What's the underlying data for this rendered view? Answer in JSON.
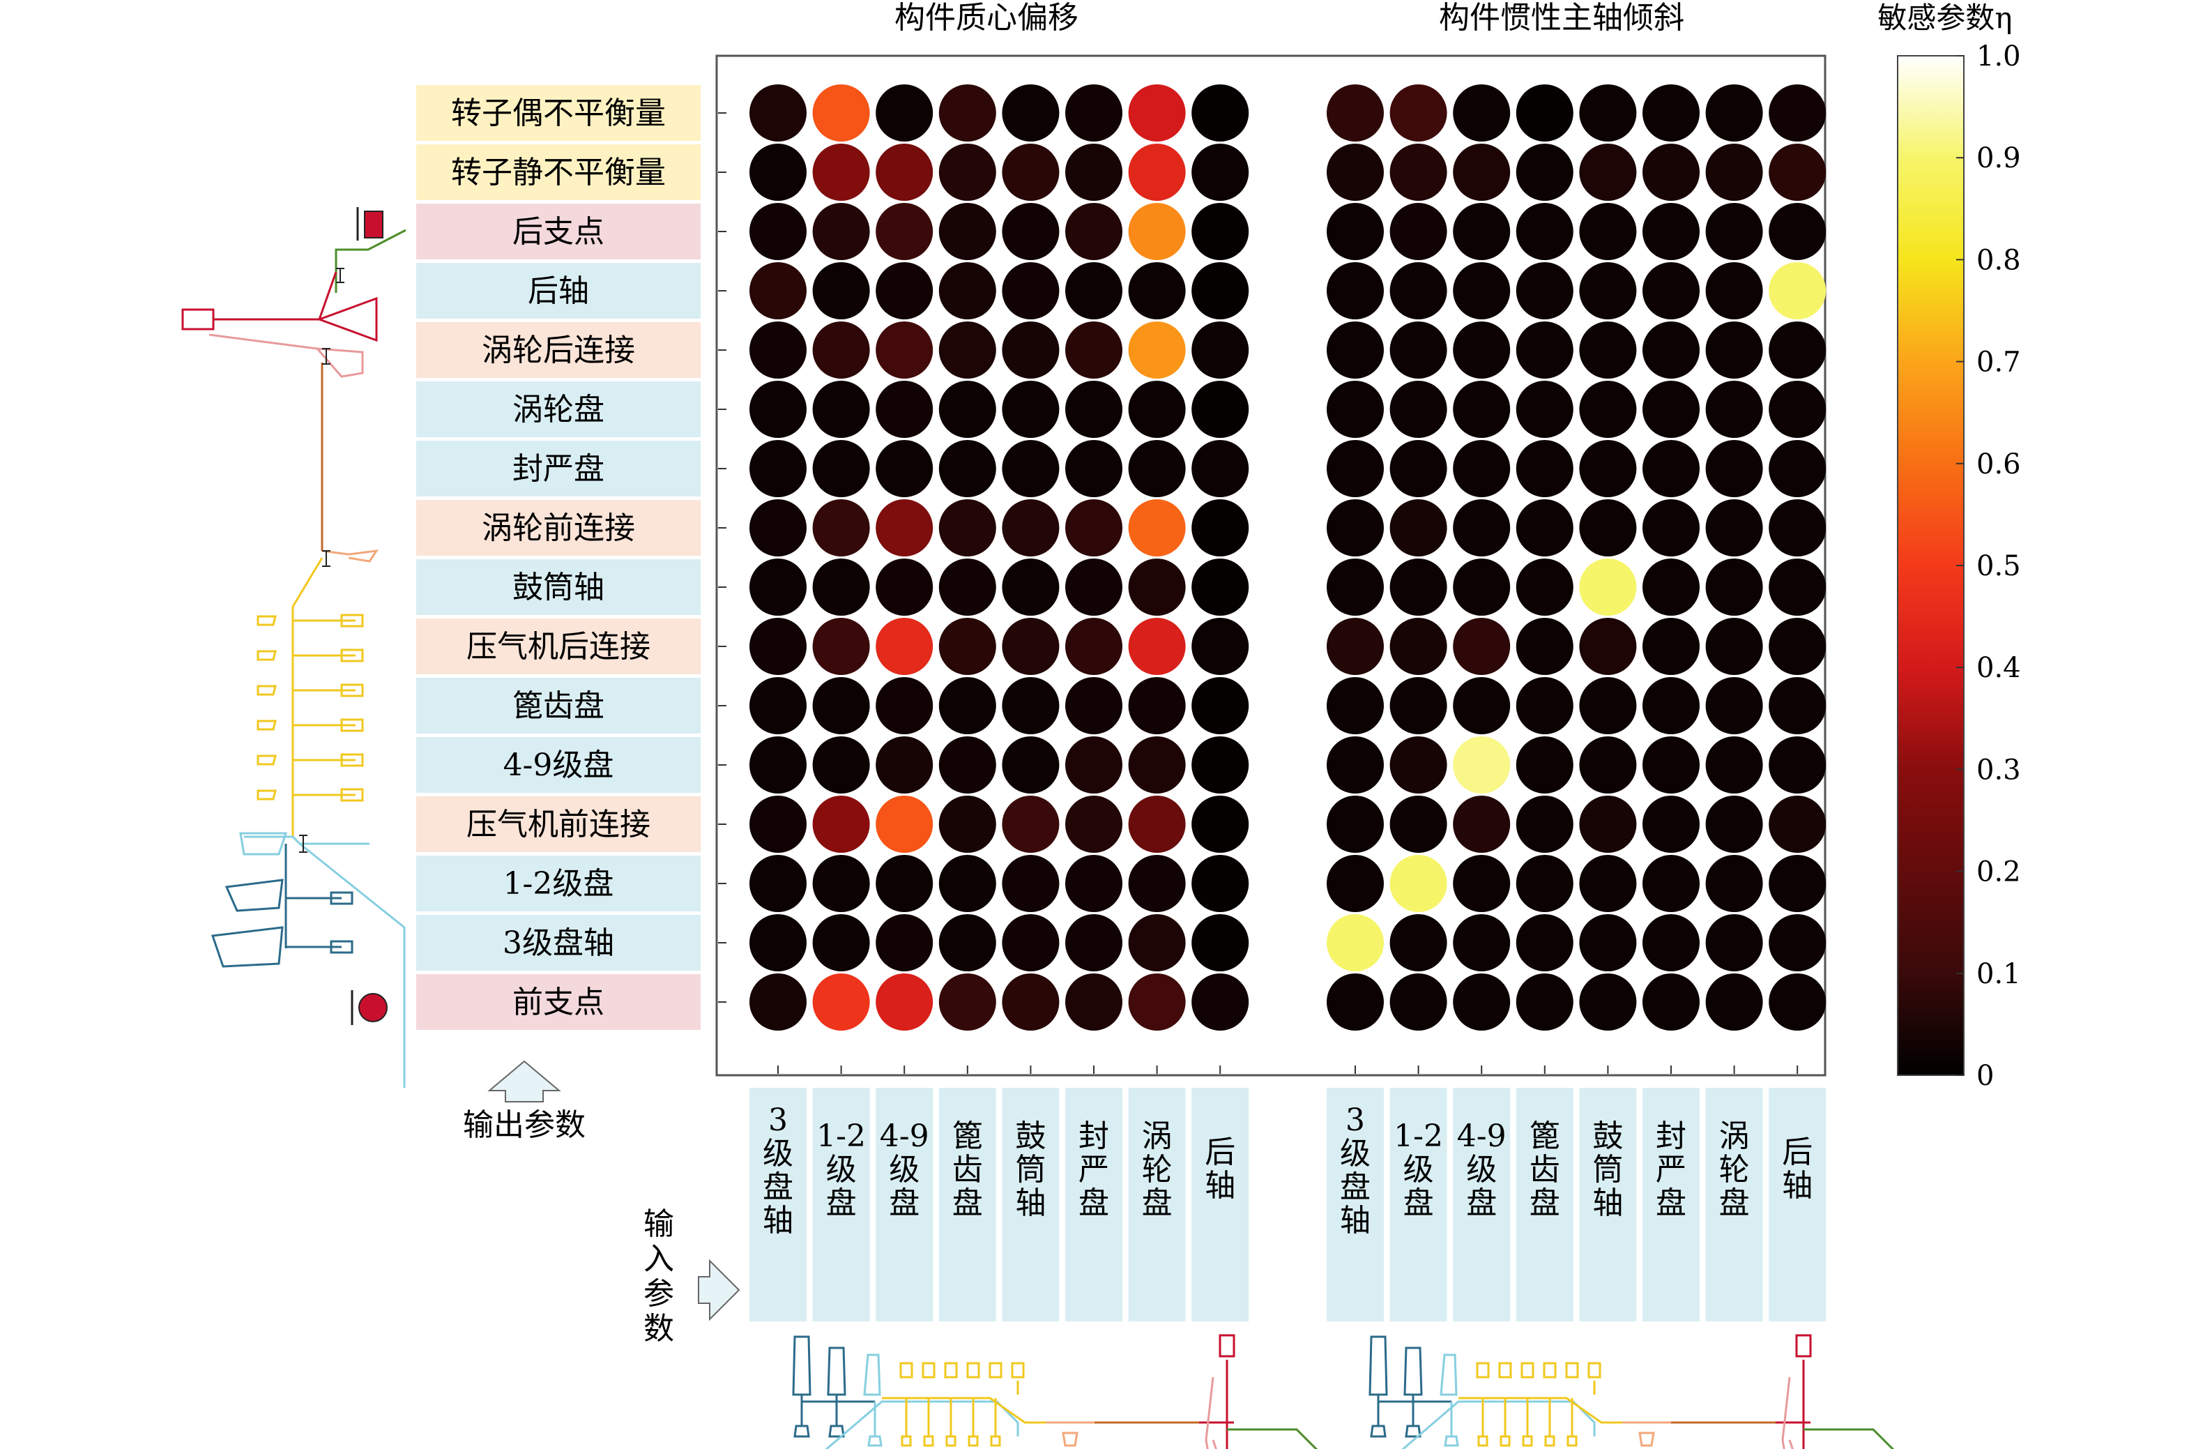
{
  "chart_data": {
    "type": "heatmap",
    "title": "",
    "panels": [
      {
        "title": "构件质心偏移"
      },
      {
        "title": "构件惯性主轴倾斜"
      }
    ],
    "row_labels": [
      "转子偶不平衡量",
      "转子静不平衡量",
      "后支点",
      "后轴",
      "涡轮后连接",
      "涡轮盘",
      "封严盘",
      "涡轮前连接",
      "鼓筒轴",
      "压气机后连接",
      "篦齿盘",
      "4-9级盘",
      "压气机前连接",
      "1-2级盘",
      "3级盘轴",
      "前支点"
    ],
    "row_groups": [
      "unbalance",
      "unbalance",
      "support",
      "component",
      "connection",
      "component",
      "component",
      "connection",
      "component",
      "connection",
      "component",
      "component",
      "connection",
      "component",
      "component",
      "support"
    ],
    "col_labels": [
      "3级盘轴",
      "1-2级盘",
      "4-9级盘",
      "篦齿盘",
      "鼓筒轴",
      "封严盘",
      "涡轮盘",
      "后轴"
    ],
    "col_labels_display": [
      "3\n级\n盘\n轴",
      "1-2\n级\n盘",
      "4-9\n级\n盘",
      "篦\n齿\n盘",
      "鼓\n筒\n轴",
      "封\n严\n盘",
      "涡\n轮\n盘",
      "后\n轴"
    ],
    "values_panel1": [
      [
        0.05,
        0.55,
        0.02,
        0.08,
        0.02,
        0.03,
        0.4,
        0.01
      ],
      [
        0.02,
        0.28,
        0.25,
        0.06,
        0.07,
        0.04,
        0.44,
        0.02
      ],
      [
        0.03,
        0.06,
        0.1,
        0.04,
        0.03,
        0.06,
        0.65,
        0.01
      ],
      [
        0.07,
        0.02,
        0.03,
        0.04,
        0.03,
        0.02,
        0.02,
        0.01
      ],
      [
        0.03,
        0.08,
        0.12,
        0.05,
        0.04,
        0.07,
        0.67,
        0.02
      ],
      [
        0.02,
        0.02,
        0.03,
        0.02,
        0.02,
        0.02,
        0.02,
        0.01
      ],
      [
        0.02,
        0.02,
        0.02,
        0.02,
        0.02,
        0.02,
        0.02,
        0.02
      ],
      [
        0.03,
        0.09,
        0.27,
        0.06,
        0.06,
        0.08,
        0.58,
        0.01
      ],
      [
        0.02,
        0.02,
        0.03,
        0.03,
        0.02,
        0.03,
        0.05,
        0.01
      ],
      [
        0.03,
        0.1,
        0.45,
        0.07,
        0.06,
        0.08,
        0.42,
        0.02
      ],
      [
        0.02,
        0.02,
        0.03,
        0.02,
        0.02,
        0.03,
        0.03,
        0.01
      ],
      [
        0.02,
        0.02,
        0.04,
        0.03,
        0.02,
        0.05,
        0.05,
        0.01
      ],
      [
        0.03,
        0.3,
        0.55,
        0.04,
        0.1,
        0.06,
        0.22,
        0.01
      ],
      [
        0.02,
        0.02,
        0.02,
        0.02,
        0.03,
        0.03,
        0.03,
        0.01
      ],
      [
        0.02,
        0.02,
        0.03,
        0.02,
        0.03,
        0.03,
        0.05,
        0.01
      ],
      [
        0.04,
        0.48,
        0.42,
        0.09,
        0.07,
        0.05,
        0.12,
        0.03
      ]
    ],
    "values_panel2": [
      [
        0.08,
        0.11,
        0.02,
        0.01,
        0.02,
        0.02,
        0.02,
        0.03
      ],
      [
        0.04,
        0.06,
        0.05,
        0.02,
        0.05,
        0.04,
        0.04,
        0.07
      ],
      [
        0.02,
        0.03,
        0.02,
        0.02,
        0.02,
        0.02,
        0.02,
        0.02
      ],
      [
        0.02,
        0.02,
        0.02,
        0.02,
        0.02,
        0.02,
        0.02,
        0.9
      ],
      [
        0.02,
        0.02,
        0.02,
        0.02,
        0.02,
        0.02,
        0.02,
        0.02
      ],
      [
        0.02,
        0.02,
        0.02,
        0.02,
        0.02,
        0.02,
        0.02,
        0.02
      ],
      [
        0.02,
        0.02,
        0.02,
        0.02,
        0.02,
        0.02,
        0.02,
        0.02
      ],
      [
        0.02,
        0.04,
        0.02,
        0.02,
        0.02,
        0.02,
        0.02,
        0.02
      ],
      [
        0.02,
        0.02,
        0.02,
        0.02,
        0.9,
        0.02,
        0.02,
        0.02
      ],
      [
        0.06,
        0.04,
        0.08,
        0.02,
        0.05,
        0.02,
        0.02,
        0.02
      ],
      [
        0.02,
        0.02,
        0.02,
        0.02,
        0.02,
        0.02,
        0.02,
        0.02
      ],
      [
        0.02,
        0.04,
        0.92,
        0.02,
        0.02,
        0.02,
        0.02,
        0.02
      ],
      [
        0.02,
        0.02,
        0.06,
        0.02,
        0.04,
        0.02,
        0.02,
        0.04
      ],
      [
        0.02,
        0.9,
        0.02,
        0.02,
        0.02,
        0.02,
        0.02,
        0.02
      ],
      [
        0.9,
        0.02,
        0.02,
        0.02,
        0.02,
        0.02,
        0.02,
        0.02
      ],
      [
        0.02,
        0.02,
        0.02,
        0.02,
        0.02,
        0.02,
        0.02,
        0.02
      ]
    ],
    "colorbar": {
      "label": "敏感参数η",
      "min": 0,
      "max": 1.0,
      "ticks": [
        "0",
        "0.1",
        "0.2",
        "0.3",
        "0.4",
        "0.5",
        "0.6",
        "0.7",
        "0.8",
        "0.9",
        "1.0"
      ],
      "colormap": "hot"
    },
    "annotations": {
      "output_label": "输出参数",
      "input_label": "输入参数"
    },
    "colors": {
      "unbalance_bg": "#fff2c2",
      "support_bg": "#f4d9dc",
      "connection_bg": "#fbe4d8",
      "component_bg": "#d9eef3",
      "col_label_bg": "#d9eef3",
      "frame": "#555555"
    }
  }
}
